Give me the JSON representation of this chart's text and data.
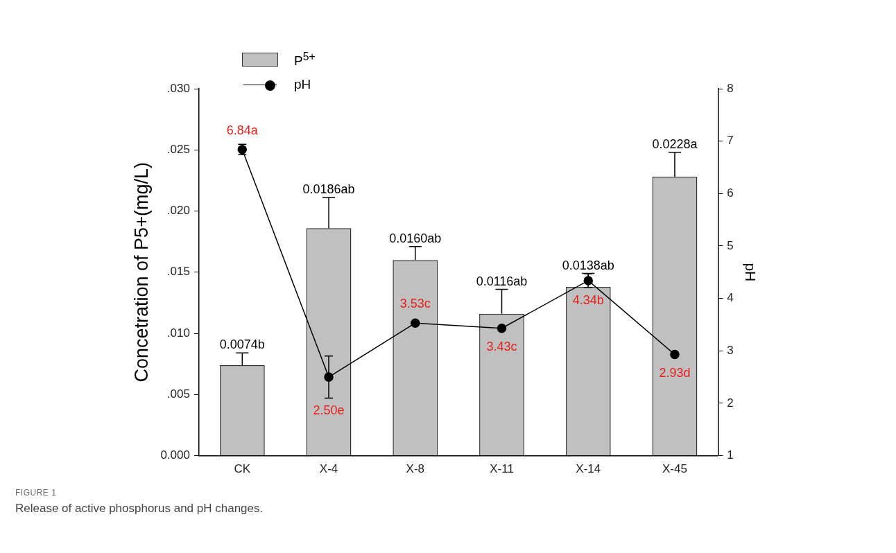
{
  "chart_data": {
    "type": "bar",
    "categories": [
      "CK",
      "X-4",
      "X-8",
      "X-11",
      "X-14",
      "X-45"
    ],
    "ylabel": "Concetration of P5+(mg/L)",
    "y2label": "pH",
    "ylim": [
      0,
      0.03
    ],
    "yticks": [
      {
        "value": 0,
        "label": "0.000"
      },
      {
        "value": 0.005,
        "label": ".005"
      },
      {
        "value": 0.01,
        "label": ".010"
      },
      {
        "value": 0.015,
        "label": ".015"
      },
      {
        "value": 0.02,
        "label": ".020"
      },
      {
        "value": 0.025,
        "label": ".025"
      },
      {
        "value": 0.03,
        "label": ".030"
      }
    ],
    "y2lim": [
      1,
      8
    ],
    "y2ticks": [
      1,
      2,
      3,
      4,
      5,
      6,
      7,
      8
    ],
    "series": [
      {
        "name": "P$^{5+}$",
        "color": "#c0c0c0",
        "values": [
          0.0074,
          0.0186,
          0.016,
          0.0116,
          0.0138,
          0.0228
        ],
        "errors": [
          [
            0.0074,
            0.0084
          ],
          [
            0.0186,
            0.0211
          ],
          [
            0.016,
            0.0171
          ],
          [
            0.0116,
            0.0136
          ],
          [
            0.0138,
            0.0149
          ],
          [
            0.0228,
            0.0248
          ]
        ],
        "value_labels": [
          "0.0074b",
          "0.0186ab",
          "0.0160ab",
          "0.0116ab",
          "0.0138ab",
          "0.0228a"
        ]
      },
      {
        "name": "pH",
        "type": "line",
        "axis": "y2",
        "color": "#000000",
        "values": [
          6.84,
          2.5,
          3.53,
          3.43,
          4.34,
          2.93
        ],
        "errors": [
          [
            6.74,
            6.94
          ],
          [
            2.1,
            2.9
          ],
          null,
          null,
          [
            4.21,
            4.47
          ],
          null
        ],
        "value_labels": [
          "6.84a",
          "2.50e",
          "3.53c",
          "3.43c",
          "4.34b",
          "2.93d"
        ]
      }
    ],
    "marker": "circle",
    "line_style": "solid",
    "grid": false,
    "legend": "top left",
    "annotations": [
      "FIGURE 1",
      "Release of active phosphorus and pH changes."
    ]
  }
}
